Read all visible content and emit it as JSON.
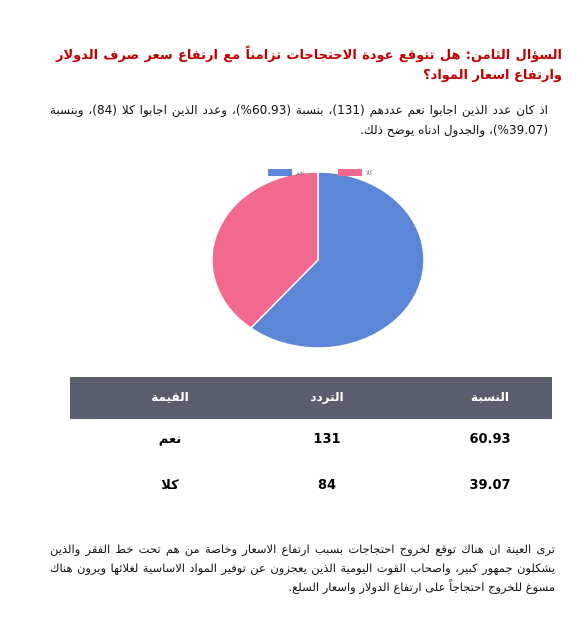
{
  "question": "السؤال الثامن: هل تتوقع عودة الاحتجاجات تزامناً مع ارتفاع سعر صرف الدولار وارتفاع اسعار المواد؟",
  "intro": "اذ كان عدد الذين اجابوا نعم عددهم (131)، بنسبة (60.93%)، وعدد الذين اجابوا كلا (84)، وبنسبة (39.07%)، والجدول ادناه يوضح ذلك.",
  "chart_data": {
    "type": "pie",
    "categories": [
      "نعم",
      "كلا"
    ],
    "values": [
      60.93,
      39.07
    ],
    "colors": [
      "#5b87d6",
      "#f2688e"
    ]
  },
  "table": {
    "header": [
      "القيمة",
      "التردد",
      "النسبة"
    ],
    "rows": [
      [
        "نعم",
        131,
        60.93
      ],
      [
        "كلا",
        84,
        39.07
      ]
    ]
  },
  "conclusion": "ترى العينة ان هناك توقع لخروج احتجاجات بسبب ارتفاع الاسعار وخاصة من هم تحت خط الفقر والذين يشكلون جمهور كبير، واصحاب القوت اليومية الذين يعجزون عن توفير المواد الاساسية لغلائها ويرون هناك مسوغ للخروج احتجاجاً على ارتفاع الدولار واسعار السلع."
}
